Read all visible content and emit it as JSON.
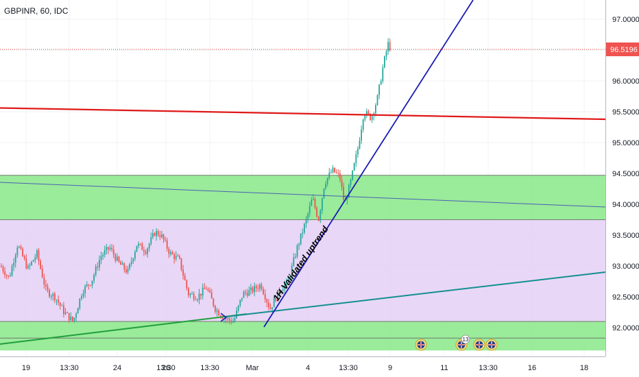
{
  "header": {
    "symbol_label": "GBPINR, 60, IDC"
  },
  "price_tag": {
    "value": "96.5196"
  },
  "annotation": {
    "text": "1H Validated uptrend"
  },
  "colors": {
    "bull": "#26a69a",
    "bear": "#ef5350",
    "zone_green": "#88e788",
    "zone_purple": "#e6d3f5",
    "red_line": "#e01818",
    "blue_line": "#1a1ab5",
    "teal_line": "#138f8f",
    "green_line": "#1f9e3c",
    "trend_line": "#4a5fb5"
  },
  "chart_data": {
    "type": "candlestick",
    "y_ticks": [
      "97.0000",
      "96.5000",
      "96.0000",
      "95.5000",
      "95.0000",
      "94.5000",
      "94.0000",
      "93.5000",
      "93.0000",
      "92.5000",
      "92.0000"
    ],
    "ylim": [
      91.6,
      97.8
    ],
    "x_ticks": [
      "19",
      "13:30",
      "24",
      "13:30",
      "26",
      "13:30",
      "Mar",
      "4",
      "13:30",
      "9",
      "11",
      "13:30",
      "16",
      "18"
    ],
    "last_price": 96.5196,
    "zones": [
      {
        "kind": "support-zone",
        "from": 93.75,
        "to": 94.47,
        "color": "zone_green"
      },
      {
        "kind": "range-zone",
        "from": 92.1,
        "to": 93.75,
        "color": "zone_purple"
      },
      {
        "kind": "support-zone",
        "from": 91.63,
        "to": 92.1,
        "color": "zone_green"
      }
    ],
    "zone_lines": [
      94.47,
      93.75,
      92.1,
      91.83
    ],
    "event_markers": [
      {
        "kind": "uk-flag",
        "label": ""
      },
      {
        "kind": "uk-flag",
        "label": "13"
      },
      {
        "kind": "uk-flag",
        "label": ""
      },
      {
        "kind": "uk-flag",
        "label": ""
      }
    ],
    "price_path": [
      [
        0,
        93.0
      ],
      [
        0.014,
        92.8
      ],
      [
        0.028,
        93.35
      ],
      [
        0.045,
        92.95
      ],
      [
        0.06,
        93.2
      ],
      [
        0.075,
        92.6
      ],
      [
        0.09,
        92.5
      ],
      [
        0.105,
        92.25
      ],
      [
        0.12,
        92.1
      ],
      [
        0.135,
        92.6
      ],
      [
        0.15,
        92.75
      ],
      [
        0.165,
        93.15
      ],
      [
        0.18,
        93.3
      ],
      [
        0.195,
        93.05
      ],
      [
        0.21,
        92.9
      ],
      [
        0.225,
        93.35
      ],
      [
        0.24,
        93.25
      ],
      [
        0.255,
        93.55
      ],
      [
        0.265,
        93.5
      ],
      [
        0.28,
        93.2
      ],
      [
        0.295,
        93.1
      ],
      [
        0.31,
        92.55
      ],
      [
        0.325,
        92.5
      ],
      [
        0.34,
        92.65
      ],
      [
        0.355,
        92.3
      ],
      [
        0.37,
        92.15
      ],
      [
        0.385,
        92.1
      ],
      [
        0.4,
        92.55
      ],
      [
        0.415,
        92.6
      ],
      [
        0.43,
        92.7
      ],
      [
        0.445,
        92.3
      ],
      [
        0.46,
        92.6
      ],
      [
        0.475,
        92.75
      ],
      [
        0.49,
        93.3
      ],
      [
        0.505,
        93.75
      ],
      [
        0.515,
        94.1
      ],
      [
        0.525,
        93.75
      ],
      [
        0.535,
        94.35
      ],
      [
        0.548,
        94.55
      ],
      [
        0.56,
        94.45
      ],
      [
        0.568,
        94.0
      ],
      [
        0.578,
        94.35
      ],
      [
        0.59,
        94.9
      ],
      [
        0.6,
        95.5
      ],
      [
        0.612,
        95.4
      ],
      [
        0.622,
        95.7
      ],
      [
        0.632,
        96.25
      ],
      [
        0.64,
        96.6
      ],
      [
        0.648,
        96.45
      ],
      [
        0.656,
        96.55
      ]
    ]
  }
}
